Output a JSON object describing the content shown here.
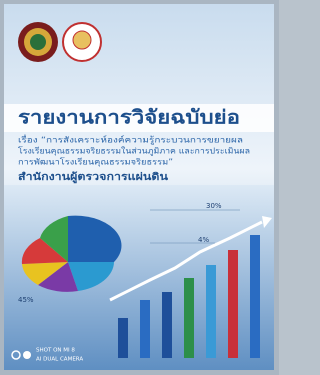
{
  "cover": {
    "title": "รายงานการวิจัยฉบับย่อ",
    "subject_lines": [
      "เรื่อง “การสังเคราะห์องค์ความรู้กระบวนการขยายผล",
      "โรงเรียนคุณธรรมจริยธรรมในส่วนภูมิภาค และการประเมินผล",
      "การพัฒนาโรงเรียนคุณธรรมจริยธรรม”"
    ],
    "agency": "สำนักงานผู้ตรวจการแผ่นดิน",
    "chart_labels": [
      "30%",
      "4%",
      "45%"
    ]
  },
  "watermark": {
    "line1": "SHOT ON MI 8",
    "line2": "AI DUAL CAMERA"
  }
}
